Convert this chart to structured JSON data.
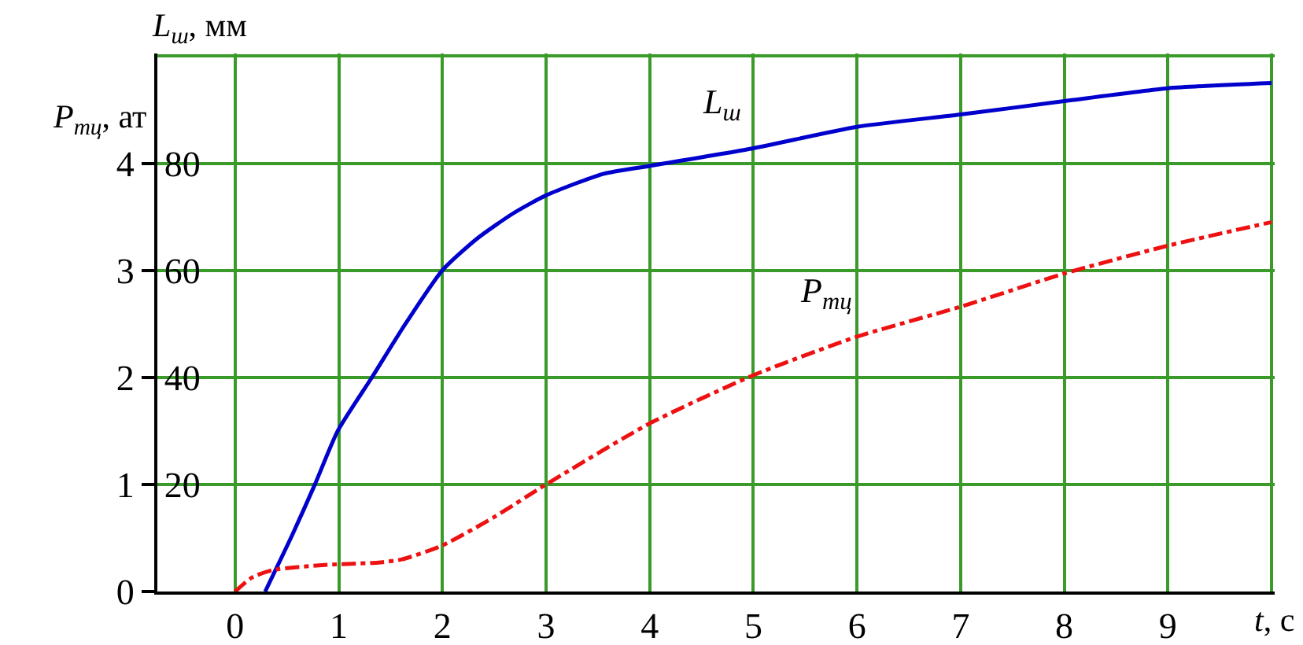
{
  "chart_data": {
    "type": "line",
    "xlabel": "t, c",
    "ylabel": "L$_{ш}$, мм",
    "y2label": "P$_{тц}$, ат",
    "xlim": [
      -0.75,
      10.03
    ],
    "xticks": [
      0,
      1,
      2,
      3,
      4,
      5,
      6,
      7,
      8,
      9,
      {
        "value": 10,
        "label": null
      }
    ],
    "ylim": [
      0,
      100.5
    ],
    "yticks": [
      {
        "value": 0,
        "label": null
      },
      20,
      40,
      60,
      80,
      {
        "value": 100,
        "label": null
      }
    ],
    "y2lim": [
      0,
      5.025
    ],
    "y2ticks": [
      0,
      1,
      2,
      3,
      4
    ],
    "grid": true,
    "legend": false,
    "series": [
      {
        "name": "L$_{ш}$",
        "color": "#0000cc",
        "line_style": "solid",
        "x": [
          0.29,
          0.55,
          0.77,
          0.99,
          1.32,
          1.61,
          2.0,
          2.34,
          2.68,
          3.0,
          3.55,
          4.0,
          5.0,
          6.0,
          7.0,
          8.0,
          9.0,
          10.0
        ],
        "values": [
          0,
          10.5,
          20,
          30,
          40,
          49,
          60,
          66,
          70.6,
          74,
          78,
          79.5,
          82.8,
          86.8,
          89.1,
          91.6,
          94,
          95
        ]
      },
      {
        "name": "P$_{тц}$",
        "color": "#ee1111",
        "line_style": "dashdot",
        "axis": "y2",
        "x": [
          0,
          0.16,
          0.36,
          0.89,
          1.38,
          1.61,
          2.0,
          2.49,
          3.0,
          4.0,
          5.0,
          6.0,
          7.0,
          8.0,
          9.0,
          10.0
        ],
        "values": [
          0,
          0.13,
          0.2,
          0.25,
          0.27,
          0.3,
          0.43,
          0.69,
          1.0,
          1.57,
          2.02,
          2.38,
          2.66,
          2.97,
          3.23,
          3.45
        ]
      }
    ]
  }
}
